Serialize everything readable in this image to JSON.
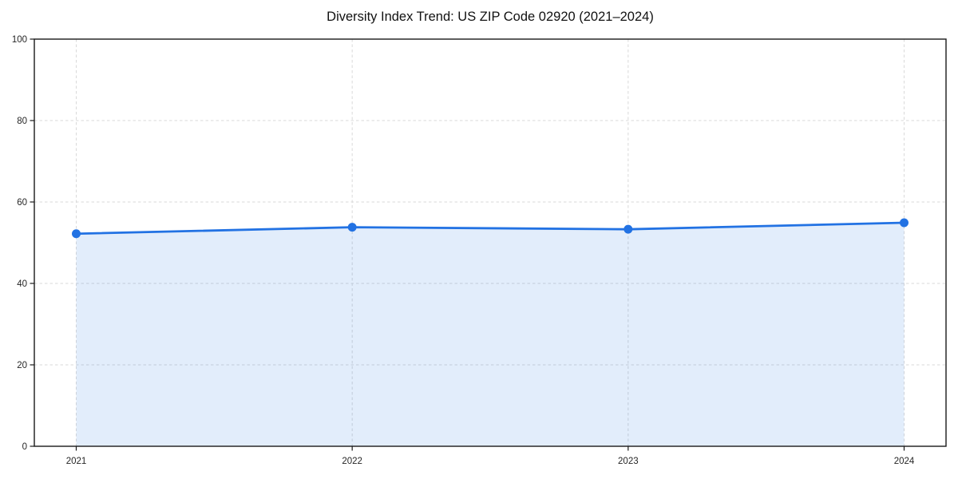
{
  "page": {
    "background": "#ffffff"
  },
  "chart_data": {
    "type": "area",
    "title": "Diversity Index Trend: US ZIP Code 02920 (2021–2024)",
    "x": [
      "2021",
      "2022",
      "2023",
      "2024"
    ],
    "series": [
      {
        "name": "Diversity Index",
        "values": [
          52.2,
          53.8,
          53.3,
          54.9
        ]
      }
    ],
    "xlabel": "",
    "ylabel": "",
    "ylim": [
      0,
      100
    ],
    "yticks": [
      0,
      20,
      40,
      60,
      80,
      100
    ],
    "grid": "dashed, horizontal and vertical",
    "legend": "none",
    "marker": "circle",
    "colors": {
      "line": "#2272e3",
      "marker": "#2272e3",
      "fill": "rgba(34, 114, 227, 0.13)",
      "grid": "#d9d9d9",
      "axis": "#1a1a1a",
      "tick_label": "#262626",
      "title": "#111111",
      "background": "#ffffff"
    }
  }
}
